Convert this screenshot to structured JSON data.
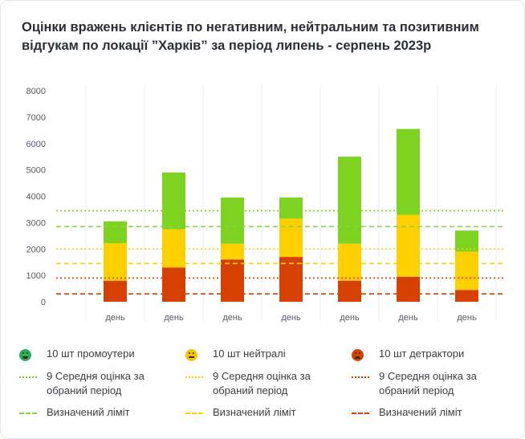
{
  "title": "Оцінки вражень клієнтів по негативним, нейтральним та позитивним відгукам по локації ”Харків” за період липень - серпень 2023р",
  "chart_data": {
    "type": "bar",
    "stacked": true,
    "categories": [
      "день",
      "день",
      "день",
      "день",
      "день",
      "день",
      "день"
    ],
    "series": [
      {
        "name": "10 шт детрактори",
        "color": "#d64000",
        "values": [
          800,
          1300,
          1600,
          1700,
          800,
          950,
          450
        ]
      },
      {
        "name": "10 шт нейтралі",
        "color": "#ffd000",
        "values": [
          1420,
          1450,
          600,
          1450,
          1400,
          2350,
          1450
        ]
      },
      {
        "name": "10 шт промоутери",
        "color": "#7ed321",
        "values": [
          830,
          2150,
          1750,
          800,
          3300,
          3250,
          800
        ]
      }
    ],
    "reference_lines": [
      {
        "name": "9 Середня оцінка за обраний період",
        "group": "promoters",
        "style": "dotted",
        "color": "#7ed321",
        "value": 3450
      },
      {
        "name": "Визначений ліміт",
        "group": "promoters",
        "style": "dashed",
        "color": "#8bd44a",
        "value": 2850
      },
      {
        "name": "9 Середня оцінка за обраний період",
        "group": "neutrals",
        "style": "dotted",
        "color": "#ffd000",
        "value": 2000
      },
      {
        "name": "Визначений ліміт",
        "group": "neutrals",
        "style": "dashed",
        "color": "#ffd000",
        "value": 1450
      },
      {
        "name": "9 Середня оцінка за обраний період",
        "group": "detractors",
        "style": "dotted",
        "color": "#d64000",
        "value": 900
      },
      {
        "name": "Визначений ліміт",
        "group": "detractors",
        "style": "dashed",
        "color": "#d64000",
        "value": 300
      }
    ],
    "yticks": [
      0,
      1000,
      2000,
      3000,
      4000,
      5000,
      6000,
      7000,
      8000
    ],
    "ylim": [
      0,
      8000
    ],
    "xlabel": "",
    "ylabel": "",
    "grid": "vertical",
    "legend_position": "bottom"
  },
  "legend": {
    "rows": [
      [
        {
          "icon": "happy-face-icon",
          "label": "10 шт промоутери",
          "color": "#27ae60"
        },
        {
          "icon": "neutral-face-icon",
          "label": "10 шт нейтралі",
          "color": "#f5c400"
        },
        {
          "icon": "sad-face-icon",
          "label": "10 шт детрактори",
          "color": "#d64000"
        }
      ],
      [
        {
          "icon": "dotted-line-icon",
          "label": "9 Середня оцінка за обраний період",
          "color": "#7ed321"
        },
        {
          "icon": "dotted-line-icon",
          "label": "9 Середня оцінка за обраний період",
          "color": "#ffd000"
        },
        {
          "icon": "dotted-line-icon",
          "label": "9 Середня оцінка за обраний період",
          "color": "#d64000"
        }
      ],
      [
        {
          "icon": "dashed-line-icon",
          "label": "Визначений ліміт",
          "color": "#8bd44a"
        },
        {
          "icon": "dashed-line-icon",
          "label": "Визначений ліміт",
          "color": "#ffd000"
        },
        {
          "icon": "dashed-line-icon",
          "label": "Визначений ліміт",
          "color": "#d64000"
        }
      ]
    ]
  }
}
